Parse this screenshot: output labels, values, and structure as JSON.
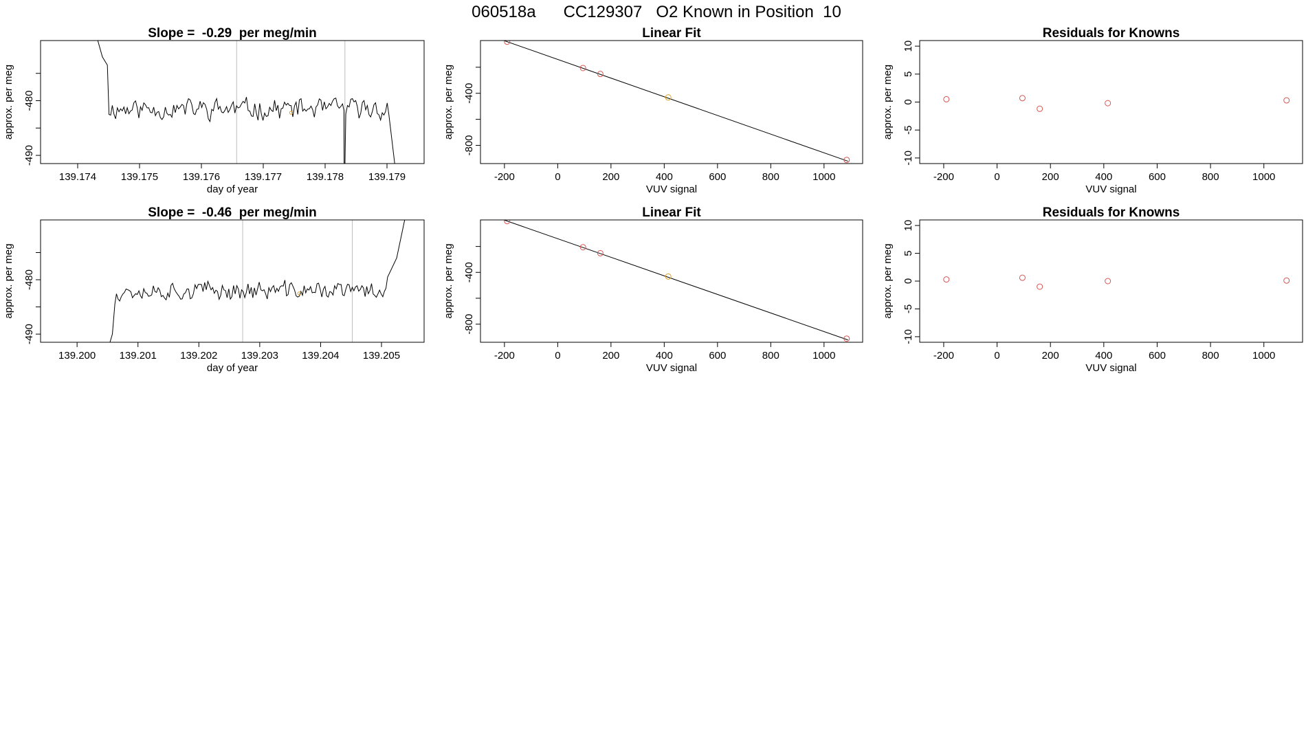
{
  "page": {
    "title": "060518a      CC129307   O2 Known in Position  10"
  },
  "colors": {
    "axis": "#000000",
    "trace": "#000000",
    "known_point": "#d9534f",
    "highlight_point": "#e0a020",
    "interval_line": "#bdbdbd"
  },
  "chart_data": [
    {
      "type": "line",
      "title": "Slope =  -0.29  per meg/min",
      "xlabel": "day of year",
      "ylabel": "approx. per meg",
      "xlim": [
        139.1734,
        139.1796
      ],
      "ylim": [
        -491.5,
        -469.0
      ],
      "xticks": [
        139.174,
        139.175,
        139.176,
        139.177,
        139.178,
        139.179
      ],
      "xtick_labels": [
        "139.174",
        "139.175",
        "139.176",
        "139.177",
        "139.178",
        "139.179"
      ],
      "yticks": [
        -490,
        -485,
        -480,
        -475
      ],
      "ytick_labels": [
        "-490",
        "",
        "-480",
        ""
      ],
      "interval_lines": [
        139.17657,
        139.17832
      ],
      "trace": {
        "x_start": 139.1743,
        "x_end": 139.17913,
        "left_tail": [
          [
            139.1743,
            -468.0
          ],
          [
            139.1744,
            -472.0
          ],
          [
            139.17448,
            -473.5
          ]
        ],
        "base": -481.5,
        "amp": 2.3,
        "seed": 11,
        "drop": {
          "x": 139.1783,
          "y": -493
        },
        "right_end": [
          [
            139.17903,
            -482.5
          ],
          [
            139.17913,
            -492
          ]
        ]
      },
      "highlight": {
        "x": 139.17745,
        "y": -482.2
      }
    },
    {
      "type": "scatter",
      "title": "Linear Fit",
      "xlabel": "VUV signal",
      "ylabel": "approx. per meg",
      "xlim": [
        -290,
        1145
      ],
      "ylim": [
        -940,
        5
      ],
      "xticks": [
        -200,
        0,
        200,
        400,
        600,
        800,
        1000
      ],
      "xtick_labels": [
        "-200",
        "0",
        "200",
        "400",
        "600",
        "800",
        "1000"
      ],
      "yticks": [
        -800,
        -600,
        -400,
        -200
      ],
      "ytick_labels": [
        "-800",
        "",
        "-400",
        ""
      ],
      "fit_line": {
        "x0": -230,
        "y0": 25,
        "x1": 1090,
        "y1": -922
      },
      "points": [
        {
          "x": -190,
          "y": -4
        },
        {
          "x": 95,
          "y": -206
        },
        {
          "x": 160,
          "y": -252
        },
        {
          "x": 415,
          "y": -432,
          "highlight": true
        },
        {
          "x": 1085,
          "y": -912
        }
      ]
    },
    {
      "type": "scatter",
      "title": "Residuals for Knowns",
      "xlabel": "VUV signal",
      "ylabel": "approx. per meg",
      "xlim": [
        -290,
        1145
      ],
      "ylim": [
        -11,
        11
      ],
      "xticks": [
        -200,
        0,
        200,
        400,
        600,
        800,
        1000
      ],
      "xtick_labels": [
        "-200",
        "0",
        "200",
        "400",
        "600",
        "800",
        "1000"
      ],
      "yticks": [
        -10,
        -5,
        0,
        5,
        10
      ],
      "ytick_labels": [
        "-10",
        "-5",
        "0",
        "5",
        "10"
      ],
      "points": [
        {
          "x": -190,
          "y": 0.5
        },
        {
          "x": 95,
          "y": 0.7
        },
        {
          "x": 160,
          "y": -1.2
        },
        {
          "x": 415,
          "y": -0.2
        },
        {
          "x": 1085,
          "y": 0.3
        }
      ]
    },
    {
      "type": "line",
      "title": "Slope =  -0.46  per meg/min",
      "xlabel": "day of year",
      "ylabel": "approx. per meg",
      "xlim": [
        139.1994,
        139.2057
      ],
      "ylim": [
        -491.5,
        -469.0
      ],
      "xticks": [
        139.2,
        139.201,
        139.202,
        139.203,
        139.204,
        139.205
      ],
      "xtick_labels": [
        "139.200",
        "139.201",
        "139.202",
        "139.203",
        "139.204",
        "139.205"
      ],
      "yticks": [
        -490,
        -485,
        -480,
        -475
      ],
      "ytick_labels": [
        "-490",
        "",
        "-480",
        ""
      ],
      "interval_lines": [
        139.20272,
        139.20452
      ],
      "trace": {
        "x_start": 139.20052,
        "x_end": 139.2054,
        "left_tail": [
          [
            139.20052,
            -493
          ],
          [
            139.20054,
            -491.5
          ],
          [
            139.20058,
            -490.0
          ],
          [
            139.20062,
            -484.5
          ]
        ],
        "base": -482.0,
        "amp": 2.0,
        "seed": 37,
        "drop": null,
        "right_end": [
          [
            139.2051,
            -479.5
          ],
          [
            139.20525,
            -476.0
          ],
          [
            139.2054,
            -468.0
          ]
        ]
      },
      "highlight": {
        "x": 139.20365,
        "y": -482.5
      }
    },
    {
      "type": "scatter",
      "title": "Linear Fit",
      "xlabel": "VUV signal",
      "ylabel": "approx. per meg",
      "xlim": [
        -290,
        1145
      ],
      "ylim": [
        -940,
        5
      ],
      "xticks": [
        -200,
        0,
        200,
        400,
        600,
        800,
        1000
      ],
      "xtick_labels": [
        "-200",
        "0",
        "200",
        "400",
        "600",
        "800",
        "1000"
      ],
      "yticks": [
        -800,
        -600,
        -400,
        -200
      ],
      "ytick_labels": [
        "-800",
        "",
        "-400",
        ""
      ],
      "fit_line": {
        "x0": -230,
        "y0": 25,
        "x1": 1090,
        "y1": -922
      },
      "points": [
        {
          "x": -190,
          "y": -4
        },
        {
          "x": 95,
          "y": -206
        },
        {
          "x": 160,
          "y": -252
        },
        {
          "x": 415,
          "y": -432,
          "highlight": true
        },
        {
          "x": 1085,
          "y": -912
        }
      ]
    },
    {
      "type": "scatter",
      "title": "Residuals for Knowns",
      "xlabel": "VUV signal",
      "ylabel": "approx. per meg",
      "xlim": [
        -290,
        1145
      ],
      "ylim": [
        -11,
        11
      ],
      "xticks": [
        -200,
        0,
        200,
        400,
        600,
        800,
        1000
      ],
      "xtick_labels": [
        "-200",
        "0",
        "200",
        "400",
        "600",
        "800",
        "1000"
      ],
      "yticks": [
        -10,
        -5,
        0,
        5,
        10
      ],
      "ytick_labels": [
        "-10",
        "-5",
        "0",
        "5",
        "10"
      ],
      "points": [
        {
          "x": -190,
          "y": 0.3
        },
        {
          "x": 95,
          "y": 0.6
        },
        {
          "x": 160,
          "y": -1.0
        },
        {
          "x": 415,
          "y": 0.0
        },
        {
          "x": 1085,
          "y": 0.1
        }
      ]
    }
  ]
}
